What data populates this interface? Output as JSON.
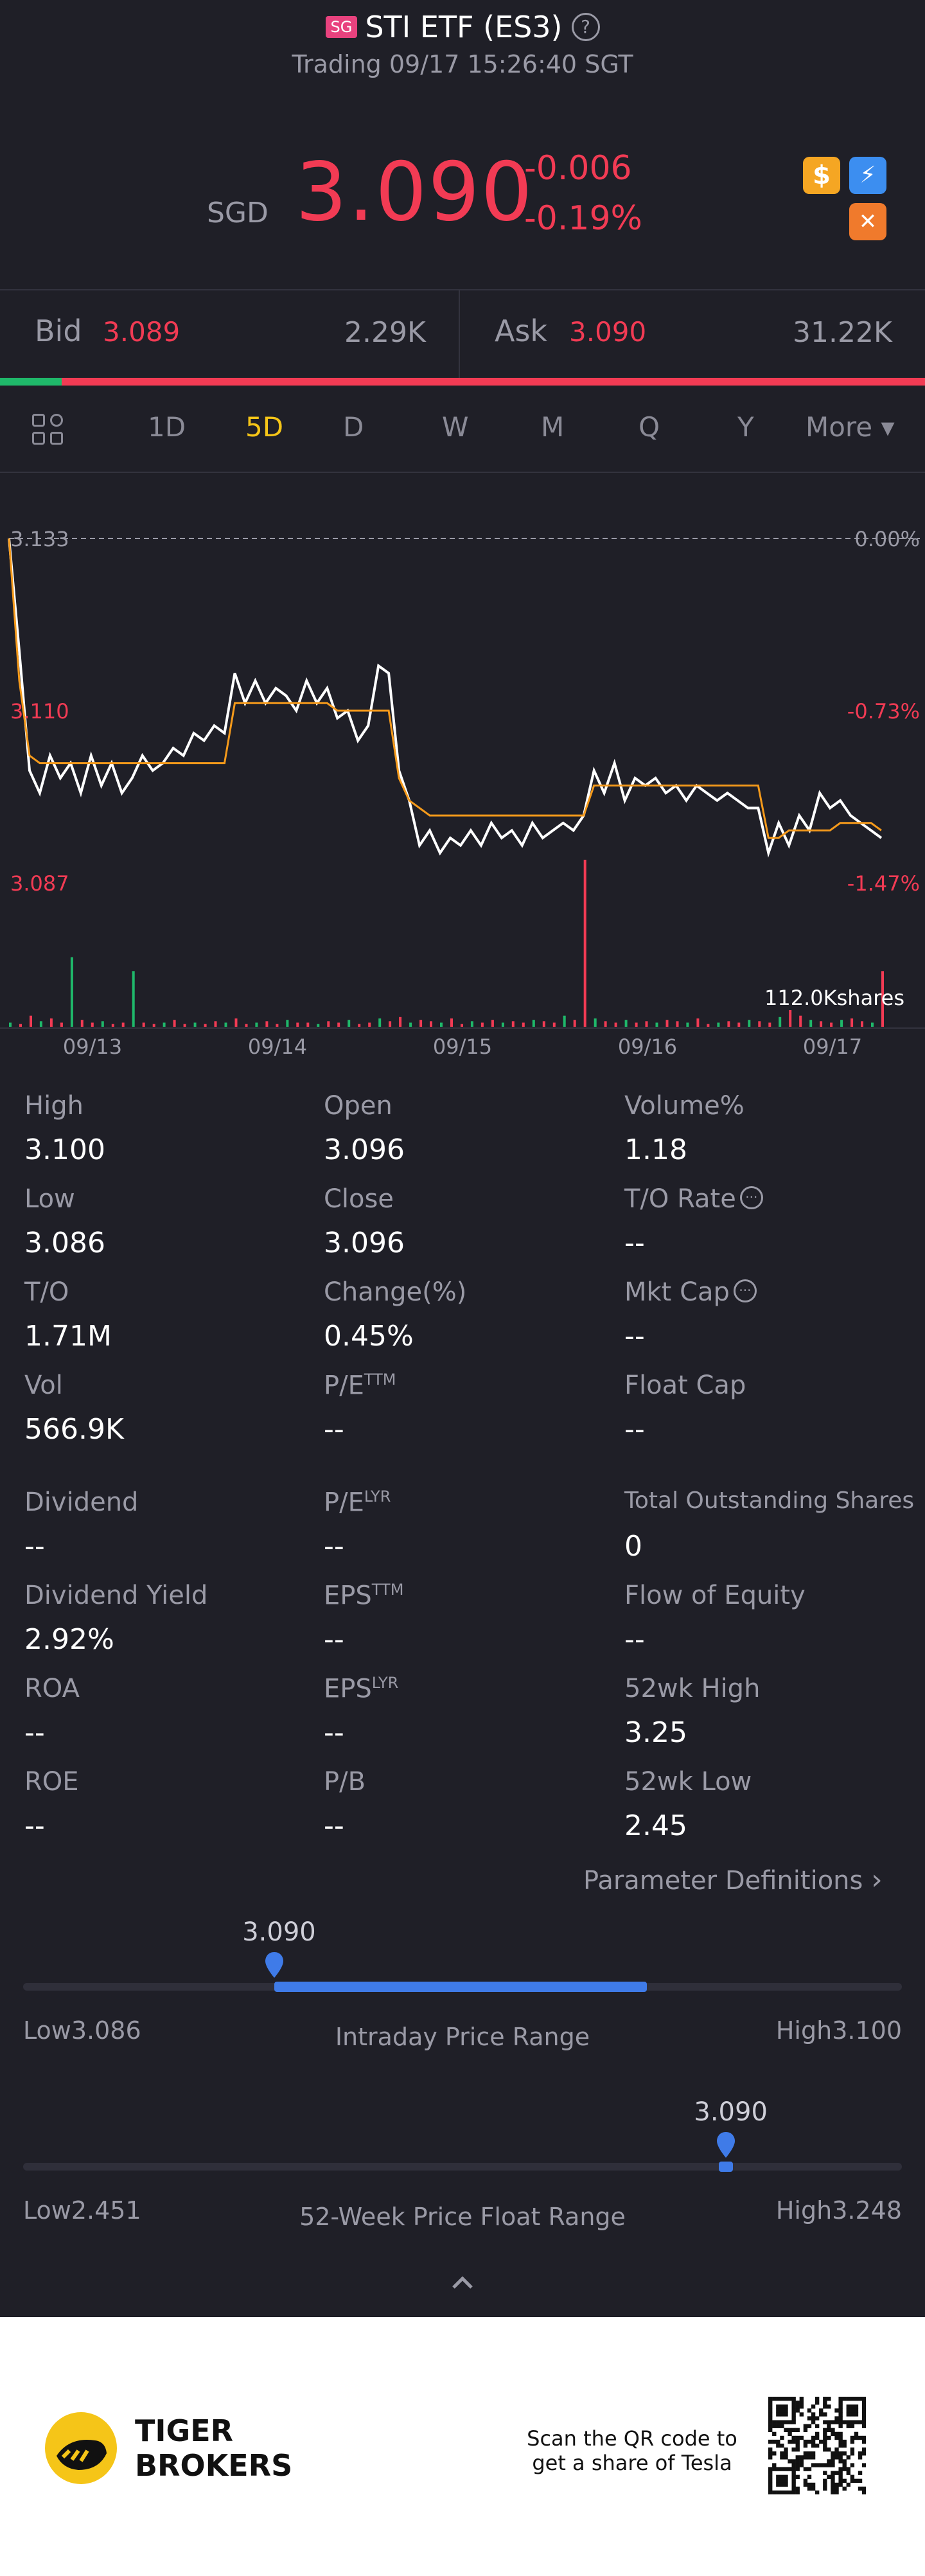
{
  "header": {
    "badge": "SG",
    "title": "STI ETF (ES3)",
    "help_glyph": "?",
    "subtitle": "Trading 09/17 15:26:40 SGT"
  },
  "quote": {
    "currency": "SGD",
    "price": "3.090",
    "change": "-0.006",
    "change_pct": "-0.19%"
  },
  "bidask": {
    "bid_label": "Bid",
    "bid_price": "3.089",
    "bid_volume": "2.29K",
    "ask_label": "Ask",
    "ask_price": "3.090",
    "ask_volume": "31.22K"
  },
  "tabs": [
    {
      "label": "1D",
      "active": false
    },
    {
      "label": "5D",
      "active": true
    },
    {
      "label": "D",
      "active": false
    },
    {
      "label": "W",
      "active": false
    },
    {
      "label": "M",
      "active": false
    },
    {
      "label": "Q",
      "active": false
    },
    {
      "label": "Y",
      "active": false
    },
    {
      "label": "More ▾",
      "active": false
    }
  ],
  "chart_data": {
    "type": "line",
    "y_labels_left": [
      "3.133",
      "3.110",
      "3.087"
    ],
    "y_labels_right": [
      "0.00%",
      "-0.73%",
      "-1.47%"
    ],
    "x_labels": [
      "09/13",
      "09/14",
      "09/15",
      "09/16",
      "09/17"
    ],
    "volume_label": "112.0Kshares",
    "ylim": [
      3.087,
      3.133
    ],
    "series": [
      {
        "color": "#ffffff",
        "values": [
          3.133,
          3.118,
          3.102,
          3.099,
          3.104,
          3.101,
          3.103,
          3.099,
          3.104,
          3.1,
          3.103,
          3.099,
          3.101,
          3.104,
          3.102,
          3.103,
          3.105,
          3.104,
          3.107,
          3.106,
          3.108,
          3.107,
          3.115,
          3.111,
          3.114,
          3.111,
          3.113,
          3.112,
          3.11,
          3.114,
          3.111,
          3.113,
          3.109,
          3.11,
          3.106,
          3.108,
          3.116,
          3.115,
          3.102,
          3.098,
          3.092,
          3.094,
          3.091,
          3.093,
          3.092,
          3.094,
          3.092,
          3.095,
          3.093,
          3.094,
          3.092,
          3.095,
          3.093,
          3.094,
          3.095,
          3.094,
          3.096,
          3.102,
          3.099,
          3.103,
          3.098,
          3.101,
          3.1,
          3.101,
          3.099,
          3.1,
          3.098,
          3.1,
          3.099,
          3.098,
          3.099,
          3.098,
          3.097,
          3.097,
          3.091,
          3.095,
          3.092,
          3.096,
          3.094,
          3.099,
          3.097,
          3.098,
          3.096,
          3.095,
          3.094,
          3.093
        ]
      },
      {
        "color": "#f59a1b",
        "values": [
          3.133,
          3.114,
          3.104,
          3.103,
          3.103,
          3.103,
          3.103,
          3.103,
          3.103,
          3.103,
          3.103,
          3.103,
          3.103,
          3.103,
          3.103,
          3.103,
          3.103,
          3.103,
          3.103,
          3.103,
          3.103,
          3.103,
          3.111,
          3.111,
          3.111,
          3.111,
          3.111,
          3.111,
          3.111,
          3.111,
          3.111,
          3.111,
          3.11,
          3.11,
          3.11,
          3.11,
          3.11,
          3.11,
          3.101,
          3.098,
          3.097,
          3.096,
          3.096,
          3.096,
          3.096,
          3.096,
          3.096,
          3.096,
          3.096,
          3.096,
          3.096,
          3.096,
          3.096,
          3.096,
          3.096,
          3.096,
          3.096,
          3.1,
          3.1,
          3.1,
          3.1,
          3.1,
          3.1,
          3.1,
          3.1,
          3.1,
          3.1,
          3.1,
          3.1,
          3.1,
          3.1,
          3.1,
          3.1,
          3.1,
          3.093,
          3.093,
          3.094,
          3.094,
          3.094,
          3.094,
          3.094,
          3.095,
          3.095,
          3.095,
          3.095,
          3.094
        ]
      }
    ],
    "volume": [
      3,
      2,
      8,
      4,
      6,
      3,
      50,
      5,
      3,
      4,
      2,
      3,
      40,
      3,
      2,
      3,
      5,
      2,
      3,
      2,
      4,
      3,
      6,
      2,
      3,
      4,
      2,
      5,
      3,
      3,
      2,
      4,
      3,
      5,
      2,
      3,
      6,
      4,
      7,
      3,
      5,
      4,
      3,
      6,
      2,
      4,
      3,
      5,
      3,
      4,
      3,
      5,
      4,
      3,
      8,
      5,
      120,
      6,
      4,
      3,
      5,
      3,
      4,
      3,
      5,
      4,
      3,
      6,
      2,
      3,
      4,
      3,
      5,
      4,
      3,
      7,
      12,
      8,
      5,
      4,
      3,
      5,
      6,
      4,
      3,
      40
    ]
  },
  "stats": [
    {
      "label": "High",
      "value": "3.100"
    },
    {
      "label": "Open",
      "value": "3.096"
    },
    {
      "label": "Volume%",
      "value": "1.18"
    },
    {
      "label": "Low",
      "value": "3.086"
    },
    {
      "label": "Close",
      "value": "3.096"
    },
    {
      "label": "T/O Rate",
      "value": "--"
    },
    {
      "label": "T/O",
      "value": "1.71M"
    },
    {
      "label": "Change(%)",
      "value": "0.45%"
    },
    {
      "label": "Mkt Cap",
      "value": "--"
    },
    {
      "label": "Vol",
      "value": "566.9K"
    },
    {
      "label": "P/E",
      "sup": "TTM",
      "value": "--"
    },
    {
      "label": "Float Cap",
      "value": "--"
    },
    {
      "label": "Dividend",
      "value": "--"
    },
    {
      "label": "P/E",
      "sup": "LYR",
      "value": "--"
    },
    {
      "label": "Total Outstanding Shares",
      "value": "0"
    },
    {
      "label": "Dividend Yield",
      "value": "2.92%"
    },
    {
      "label": "EPS",
      "sup": "TTM",
      "value": "--"
    },
    {
      "label": "Flow of Equity",
      "value": "--"
    },
    {
      "label": "ROA",
      "value": "--"
    },
    {
      "label": "EPS",
      "sup": "LYR",
      "value": "--"
    },
    {
      "label": "52wk High",
      "value": "3.25"
    },
    {
      "label": "ROE",
      "value": "--"
    },
    {
      "label": "P/B",
      "value": "--"
    },
    {
      "label": "52wk Low",
      "value": "2.45"
    }
  ],
  "param_link": "Parameter Definitions",
  "intraday": {
    "current": "3.090",
    "low_label": "Low",
    "low": "3.086",
    "high_label": "High",
    "high": "3.100",
    "title": "Intraday Price Range",
    "current_fraction": 0.286,
    "fill_end_fraction": 0.71
  },
  "week52": {
    "current": "3.090",
    "low_label": "Low",
    "low": "2.451",
    "high_label": "High",
    "high": "3.248",
    "title": "52-Week Price Float Range",
    "current_fraction": 0.8
  },
  "footer": {
    "brand_line1": "TIGER",
    "brand_line2": "BROKERS",
    "qr_line1": "Scan the QR code to",
    "qr_line2": "get a share of Tesla"
  },
  "colors": {
    "up": "#1fb86a",
    "down": "#f23b54",
    "accent": "#3f7be8",
    "active_tab": "#f5c518"
  }
}
